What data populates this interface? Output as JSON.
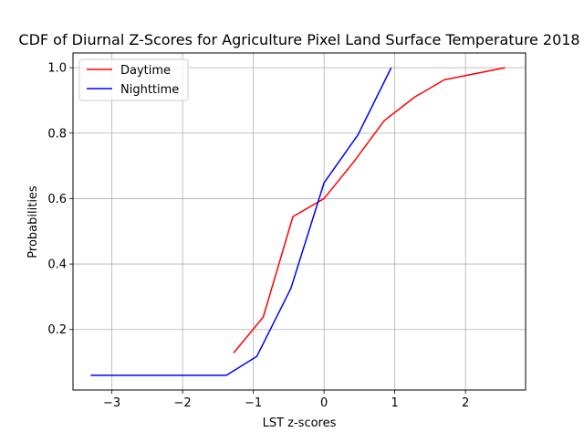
{
  "chart_data": {
    "type": "line",
    "title": "CDF of Diurnal Z-Scores for Agriculture Pixel Land Surface Temperature 2018",
    "xlabel": "LST z-scores",
    "ylabel": "Probabilities",
    "xlim": [
      -3.55,
      2.85
    ],
    "ylim": [
      0.015,
      1.045
    ],
    "x_ticks": [
      -3,
      -2,
      -1,
      0,
      1,
      2
    ],
    "x_tick_labels": [
      "−3",
      "−2",
      "−1",
      "0",
      "1",
      "2"
    ],
    "y_ticks": [
      0.2,
      0.4,
      0.6,
      0.8,
      1.0
    ],
    "y_tick_labels": [
      "0.2",
      "0.4",
      "0.6",
      "0.8",
      "1.0"
    ],
    "grid": true,
    "legend_position": "top-left",
    "series": [
      {
        "name": "Daytime",
        "color": "#ff0000",
        "x": [
          -1.28,
          -0.86,
          -0.44,
          0.0,
          0.43,
          0.85,
          1.28,
          1.7,
          2.56
        ],
        "y": [
          0.128,
          0.238,
          0.545,
          0.6,
          0.715,
          0.838,
          0.91,
          0.963,
          1.0
        ]
      },
      {
        "name": "Nighttime",
        "color": "#0000ff",
        "x": [
          -3.3,
          -2.87,
          -2.45,
          -2.02,
          -1.6,
          -1.38,
          -0.95,
          -0.47,
          0.0,
          0.48,
          0.95
        ],
        "y": [
          0.06,
          0.06,
          0.06,
          0.06,
          0.06,
          0.06,
          0.118,
          0.325,
          0.648,
          0.795,
          1.0
        ]
      }
    ]
  }
}
